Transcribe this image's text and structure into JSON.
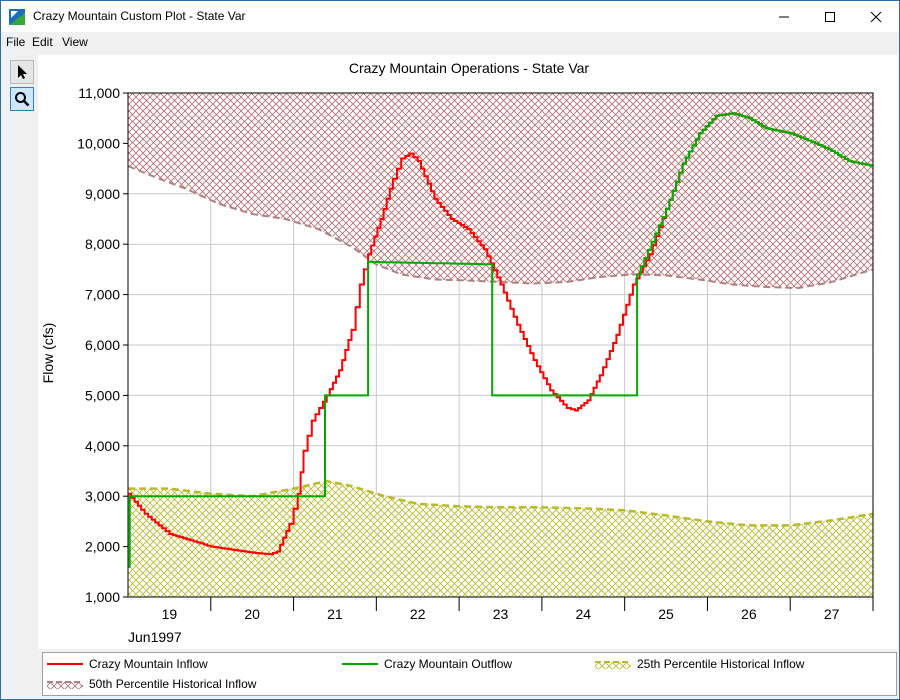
{
  "window": {
    "title": "Crazy Mountain Custom Plot - State Var",
    "buttons": {
      "minimize": "minimize-icon",
      "maximize": "maximize-icon",
      "close": "close-icon"
    }
  },
  "menu": {
    "file": "File",
    "edit": "Edit",
    "view": "View"
  },
  "toolbar": {
    "pointer_icon": "pointer-arrow-icon",
    "zoom_icon": "zoom-magnifier-icon"
  },
  "colors": {
    "inflow": "#ff0000",
    "outflow": "#00aa00",
    "p25": "#b9b92a",
    "p25_fill": "#c8cc3a",
    "p50": "#b08080",
    "p50_fill": "#b36b6b",
    "grid": "#c8c8c8"
  },
  "chart_data": {
    "type": "line",
    "title": "Crazy Mountain Operations - State Var",
    "ylabel": "Flow (cfs)",
    "xlabel": "Jun1997",
    "ylim": [
      1000,
      11000
    ],
    "y_ticks": [
      "1,000",
      "2,000",
      "3,000",
      "4,000",
      "5,000",
      "6,000",
      "7,000",
      "8,000",
      "9,000",
      "10,000",
      "11,000"
    ],
    "x_ticks": [
      "19",
      "20",
      "21",
      "22",
      "23",
      "24",
      "25",
      "26",
      "27"
    ],
    "xlim_days": [
      18.5,
      27.5
    ],
    "grid": true,
    "legend_position": "bottom",
    "series": [
      {
        "name": "Crazy Mountain Inflow",
        "style": "step",
        "points": [
          [
            18.5,
            3050
          ],
          [
            18.7,
            2650
          ],
          [
            19.0,
            2250
          ],
          [
            19.5,
            2000
          ],
          [
            20.0,
            1880
          ],
          [
            20.2,
            1850
          ],
          [
            20.3,
            1900
          ],
          [
            20.45,
            2450
          ],
          [
            20.55,
            3050
          ],
          [
            20.62,
            3900
          ],
          [
            20.72,
            4500
          ],
          [
            20.9,
            5000
          ],
          [
            21.05,
            5500
          ],
          [
            21.2,
            6300
          ],
          [
            21.3,
            7200
          ],
          [
            21.4,
            7800
          ],
          [
            21.55,
            8500
          ],
          [
            21.7,
            9300
          ],
          [
            21.8,
            9700
          ],
          [
            21.9,
            9800
          ],
          [
            22.0,
            9650
          ],
          [
            22.2,
            8900
          ],
          [
            22.4,
            8500
          ],
          [
            22.6,
            8300
          ],
          [
            22.8,
            7900
          ],
          [
            23.0,
            7200
          ],
          [
            23.2,
            6400
          ],
          [
            23.4,
            5700
          ],
          [
            23.6,
            5100
          ],
          [
            23.8,
            4750
          ],
          [
            23.9,
            4700
          ],
          [
            24.05,
            4900
          ],
          [
            24.2,
            5400
          ],
          [
            24.4,
            6200
          ],
          [
            24.6,
            7200
          ],
          [
            24.8,
            7800
          ],
          [
            25.0,
            8700
          ],
          [
            25.2,
            9600
          ],
          [
            25.4,
            10200
          ],
          [
            25.6,
            10550
          ],
          [
            25.8,
            10600
          ],
          [
            26.0,
            10500
          ],
          [
            26.2,
            10300
          ],
          [
            26.5,
            10200
          ],
          [
            26.8,
            10000
          ],
          [
            27.0,
            9850
          ],
          [
            27.2,
            9650
          ],
          [
            27.5,
            9550
          ]
        ]
      },
      {
        "name": "Crazy Mountain Outflow",
        "style": "step",
        "points": [
          [
            18.5,
            1600
          ],
          [
            18.52,
            3000
          ],
          [
            20.88,
            3000
          ],
          [
            20.88,
            5000
          ],
          [
            21.4,
            5000
          ],
          [
            21.4,
            7650
          ],
          [
            22.9,
            7600
          ],
          [
            22.9,
            5000
          ],
          [
            24.65,
            5000
          ],
          [
            24.65,
            7400
          ],
          [
            25.0,
            8700
          ],
          [
            25.2,
            9600
          ],
          [
            25.4,
            10200
          ],
          [
            25.6,
            10550
          ],
          [
            25.8,
            10600
          ],
          [
            26.0,
            10500
          ],
          [
            26.2,
            10300
          ],
          [
            26.5,
            10200
          ],
          [
            26.8,
            10000
          ],
          [
            27.0,
            9850
          ],
          [
            27.2,
            9650
          ],
          [
            27.5,
            9550
          ]
        ]
      },
      {
        "name": "25th Percentile Historical Inflow",
        "style": "dashed-area",
        "points": [
          [
            18.5,
            3150
          ],
          [
            19.0,
            3150
          ],
          [
            19.5,
            3050
          ],
          [
            20.0,
            3000
          ],
          [
            20.5,
            3150
          ],
          [
            20.9,
            3300
          ],
          [
            21.2,
            3200
          ],
          [
            21.6,
            3000
          ],
          [
            22.0,
            2850
          ],
          [
            22.5,
            2800
          ],
          [
            23.0,
            2780
          ],
          [
            23.5,
            2780
          ],
          [
            24.0,
            2760
          ],
          [
            24.5,
            2720
          ],
          [
            25.0,
            2620
          ],
          [
            25.5,
            2500
          ],
          [
            26.0,
            2420
          ],
          [
            26.5,
            2420
          ],
          [
            27.0,
            2520
          ],
          [
            27.5,
            2650
          ]
        ]
      },
      {
        "name": "50th Percentile Historical Inflow",
        "style": "dashed-area",
        "points": [
          [
            18.5,
            9550
          ],
          [
            18.8,
            9350
          ],
          [
            19.2,
            9100
          ],
          [
            19.6,
            8800
          ],
          [
            20.0,
            8600
          ],
          [
            20.4,
            8500
          ],
          [
            20.8,
            8300
          ],
          [
            21.2,
            7950
          ],
          [
            21.5,
            7600
          ],
          [
            21.8,
            7400
          ],
          [
            22.2,
            7300
          ],
          [
            22.6,
            7280
          ],
          [
            23.0,
            7250
          ],
          [
            23.4,
            7220
          ],
          [
            23.8,
            7250
          ],
          [
            24.2,
            7350
          ],
          [
            24.6,
            7400
          ],
          [
            25.0,
            7380
          ],
          [
            25.4,
            7300
          ],
          [
            25.8,
            7200
          ],
          [
            26.2,
            7150
          ],
          [
            26.6,
            7130
          ],
          [
            27.0,
            7250
          ],
          [
            27.5,
            7500
          ]
        ]
      }
    ]
  }
}
